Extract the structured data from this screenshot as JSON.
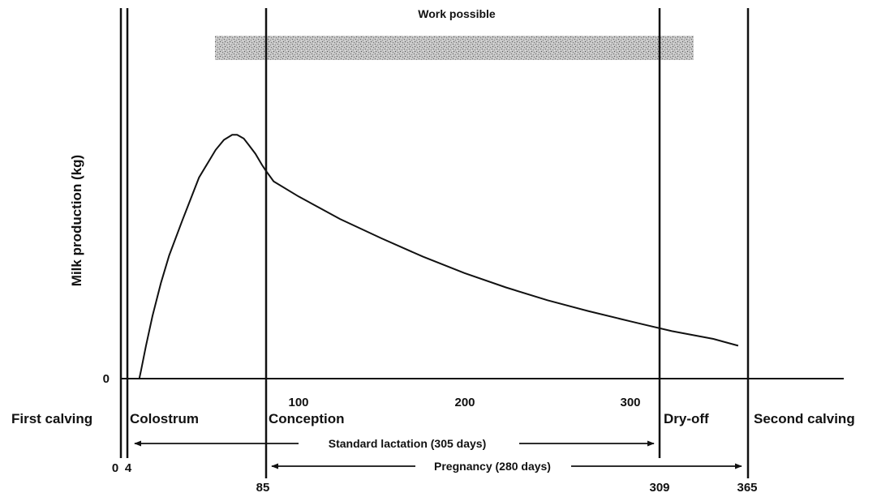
{
  "chart_data": {
    "type": "line",
    "title": "",
    "xlabel": "",
    "ylabel": "Milk production (kg)",
    "xlim": [
      0,
      365
    ],
    "y_zero_label": "0",
    "x_ticks": [
      "100",
      "200",
      "300"
    ],
    "grid": false,
    "series": [
      {
        "x": [
          4,
          5,
          8,
          12,
          17,
          22,
          30,
          40,
          50,
          55,
          60,
          63,
          67,
          70,
          74,
          78,
          80,
          85,
          100,
          125,
          150,
          175,
          200,
          225,
          250,
          275,
          300,
          309,
          325,
          350,
          365
        ],
        "y": [
          0,
          3,
          13,
          25,
          38,
          49,
          63,
          80,
          91,
          95,
          97,
          97,
          95.5,
          93,
          89.5,
          85,
          83,
          78.5,
          72.5,
          63.5,
          55.8,
          48.5,
          42,
          36.3,
          31.2,
          26.8,
          22.8,
          21.4,
          18.9,
          15.8,
          13.1
        ]
      }
    ],
    "events": [
      {
        "day": 0,
        "day_label": "0",
        "event": "First calving"
      },
      {
        "day": 4,
        "day_label": "4",
        "event": "Colostrum"
      },
      {
        "day": 85,
        "day_label": "85",
        "event": "Conception"
      },
      {
        "day": 309,
        "day_label": "309",
        "event": "Dry-off"
      },
      {
        "day": 365,
        "day_label": "365",
        "event": "Second calving"
      }
    ],
    "spans": [
      {
        "label": "Standard lactation (305 days)",
        "start": 4,
        "end": 309
      },
      {
        "label": "Pregnancy (280 days)",
        "start": 85,
        "end": 365
      }
    ],
    "work_window": {
      "label": "Work possible",
      "start": 52,
      "end": 340
    }
  }
}
